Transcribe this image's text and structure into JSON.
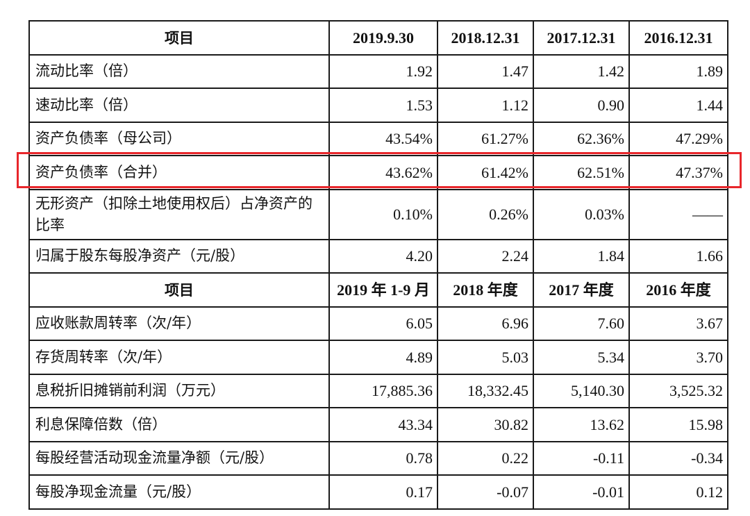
{
  "header1": {
    "item": "项目",
    "cols": [
      "2019.9.30",
      "2018.12.31",
      "2017.12.31",
      "2016.12.31"
    ]
  },
  "rows1": [
    {
      "label": "流动比率（倍）",
      "values": [
        "1.92",
        "1.47",
        "1.42",
        "1.89"
      ]
    },
    {
      "label": "速动比率（倍）",
      "values": [
        "1.53",
        "1.12",
        "0.90",
        "1.44"
      ]
    },
    {
      "label": "资产负债率（母公司）",
      "values": [
        "43.54%",
        "61.27%",
        "62.36%",
        "47.29%"
      ]
    },
    {
      "label": "资产负债率（合并）",
      "values": [
        "43.62%",
        "61.42%",
        "62.51%",
        "47.37%"
      ]
    },
    {
      "label": "无形资产（扣除土地使用权后）占净资产的比率",
      "values": [
        "0.10%",
        "0.26%",
        "0.03%",
        "——"
      ]
    },
    {
      "label": "归属于股东每股净资产（元/股）",
      "values": [
        "4.20",
        "2.24",
        "1.84",
        "1.66"
      ]
    }
  ],
  "header2": {
    "item": "项目",
    "cols": [
      "2019 年 1-9 月",
      "2018 年度",
      "2017 年度",
      "2016 年度"
    ]
  },
  "rows2": [
    {
      "label": "应收账款周转率（次/年）",
      "values": [
        "6.05",
        "6.96",
        "7.60",
        "3.67"
      ]
    },
    {
      "label": "存货周转率（次/年）",
      "values": [
        "4.89",
        "5.03",
        "5.34",
        "3.70"
      ]
    },
    {
      "label": "息税折旧摊销前利润（万元）",
      "values": [
        "17,885.36",
        "18,332.45",
        "5,140.30",
        "3,525.32"
      ]
    },
    {
      "label": "利息保障倍数（倍）",
      "values": [
        "43.34",
        "30.82",
        "13.62",
        "15.98"
      ]
    },
    {
      "label": "每股经营活动现金流量净额（元/股）",
      "values": [
        "0.78",
        "0.22",
        "-0.11",
        "-0.34"
      ]
    },
    {
      "label": "每股净现金流量（元/股）",
      "values": [
        "0.17",
        "-0.07",
        "-0.01",
        "0.12"
      ]
    }
  ],
  "highlight_color": "#e8262b"
}
